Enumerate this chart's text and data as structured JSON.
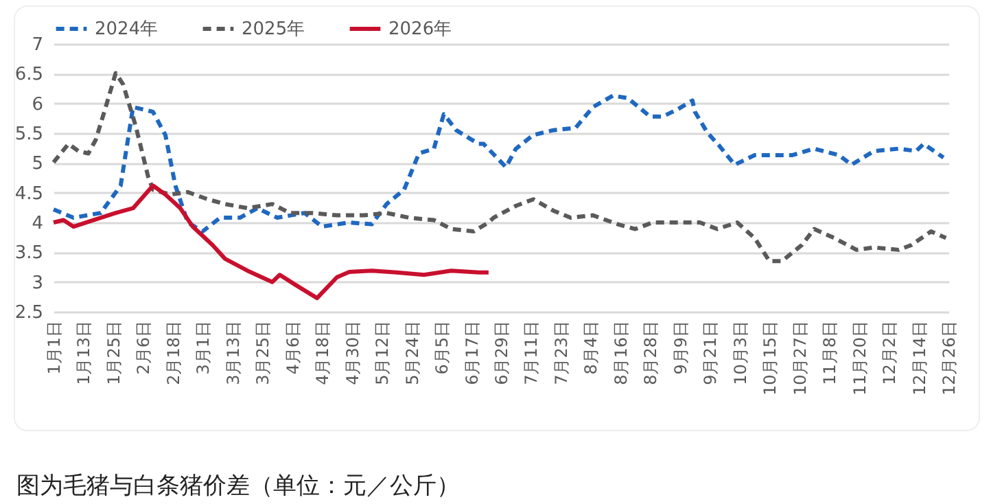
{
  "chart_data": {
    "type": "line",
    "annotations": [
      "图为毛猪与白条猪价差（单位：元／公斤）"
    ],
    "legend": "top",
    "grid": "y",
    "ylim": [
      2.5,
      7
    ],
    "yticks": [
      2.5,
      3,
      3.5,
      4,
      4.5,
      5,
      5.5,
      6,
      6.5,
      7
    ],
    "xlim": [
      "--01-01",
      "--12-26"
    ],
    "xticks": [
      {
        "value": "--01-01",
        "label": "1月1日"
      },
      {
        "value": "--01-13",
        "label": "1月13日"
      },
      {
        "value": "--01-25",
        "label": "1月25日"
      },
      {
        "value": "--02-06",
        "label": "2月6日"
      },
      {
        "value": "--02-18",
        "label": "2月18日"
      },
      {
        "value": "--03-01",
        "label": "3月1日"
      },
      {
        "value": "--03-13",
        "label": "3月13日"
      },
      {
        "value": "--03-25",
        "label": "3月25日"
      },
      {
        "value": "--04-06",
        "label": "4月6日"
      },
      {
        "value": "--04-18",
        "label": "4月18日"
      },
      {
        "value": "--04-30",
        "label": "4月30日"
      },
      {
        "value": "--05-12",
        "label": "5月12日"
      },
      {
        "value": "--05-24",
        "label": "5月24日"
      },
      {
        "value": "--06-05",
        "label": "6月5日"
      },
      {
        "value": "--06-17",
        "label": "6月17日"
      },
      {
        "value": "--06-29",
        "label": "6月29日"
      },
      {
        "value": "--07-11",
        "label": "7月11日"
      },
      {
        "value": "--07-23",
        "label": "7月23日"
      },
      {
        "value": "--08-04",
        "label": "8月4日"
      },
      {
        "value": "--08-16",
        "label": "8月16日"
      },
      {
        "value": "--08-28",
        "label": "8月28日"
      },
      {
        "value": "--09-09",
        "label": "9月9日"
      },
      {
        "value": "--09-21",
        "label": "9月21日"
      },
      {
        "value": "--10-03",
        "label": "10月3日"
      },
      {
        "value": "--10-15",
        "label": "10月15日"
      },
      {
        "value": "--10-27",
        "label": "10月27日"
      },
      {
        "value": "--11-08",
        "label": "11月8日"
      },
      {
        "value": "--11-20",
        "label": "11月20日"
      },
      {
        "value": "--12-02",
        "label": "12月2日"
      },
      {
        "value": "--12-14",
        "label": "12月14日"
      },
      {
        "value": "--12-26",
        "label": "12月26日"
      }
    ],
    "series": [
      {
        "name": "2024年",
        "color": "#1f68c0",
        "line_style": "dashed",
        "x": [
          "--01-01",
          "--01-09",
          "--01-20",
          "--01-28",
          "--02-02",
          "--02-10",
          "--02-15",
          "--02-19",
          "--02-24",
          "--03-01",
          "--03-08",
          "--03-16",
          "--03-23",
          "--03-31",
          "--04-11",
          "--04-18",
          "--04-29",
          "--05-08",
          "--05-14",
          "--05-21",
          "--05-27",
          "--06-02",
          "--06-06",
          "--06-11",
          "--06-20",
          "--06-22",
          "--07-01",
          "--07-05",
          "--07-12",
          "--07-20",
          "--07-29",
          "--08-05",
          "--08-13",
          "--08-19",
          "--08-28",
          "--09-02",
          "--09-08",
          "--09-14",
          "--09-15",
          "--09-20",
          "--09-25",
          "--10-01",
          "--10-09",
          "--10-15",
          "--10-24",
          "--11-02",
          "--11-12",
          "--11-17",
          "--11-26",
          "--12-06",
          "--12-13",
          "--12-16",
          "--12-24"
        ],
        "values": [
          4.22,
          4.08,
          4.16,
          4.62,
          5.94,
          5.86,
          5.47,
          4.62,
          4.0,
          3.85,
          4.08,
          4.08,
          4.24,
          4.08,
          4.16,
          3.93,
          4.0,
          3.97,
          4.31,
          4.55,
          5.16,
          5.24,
          5.82,
          5.55,
          5.32,
          5.32,
          4.93,
          5.24,
          5.47,
          5.55,
          5.59,
          5.94,
          6.13,
          6.09,
          5.78,
          5.78,
          5.9,
          6.05,
          5.86,
          5.51,
          5.28,
          4.97,
          5.13,
          5.13,
          5.13,
          5.24,
          5.13,
          4.97,
          5.2,
          5.24,
          5.2,
          5.32,
          5.09
        ]
      },
      {
        "name": "2025年",
        "color": "#5a5a5a",
        "line_style": "dashed",
        "x": [
          "--01-01",
          "--01-07",
          "--01-11",
          "--01-15",
          "--01-18",
          "--01-22",
          "--01-26",
          "--01-29",
          "--02-03",
          "--02-08",
          "--02-10",
          "--02-17",
          "--02-24",
          "--03-03",
          "--03-10",
          "--03-19",
          "--03-29",
          "--04-05",
          "--04-14",
          "--04-24",
          "--05-05",
          "--05-14",
          "--05-23",
          "--06-02",
          "--06-09",
          "--06-18",
          "--06-24",
          "--06-26",
          "--07-05",
          "--07-12",
          "--07-20",
          "--07-27",
          "--08-05",
          "--08-15",
          "--08-22",
          "--08-29",
          "--09-08",
          "--09-17",
          "--09-24",
          "--10-02",
          "--10-09",
          "--10-15",
          "--10-20",
          "--10-28",
          "--11-02",
          "--11-10",
          "--11-19",
          "--11-26",
          "--12-06",
          "--12-11",
          "--12-19",
          "--12-25"
        ],
        "values": [
          5.01,
          5.32,
          5.2,
          5.16,
          5.39,
          5.94,
          6.51,
          6.32,
          5.63,
          4.78,
          4.55,
          4.47,
          4.51,
          4.39,
          4.31,
          4.24,
          4.31,
          4.16,
          4.16,
          4.12,
          4.12,
          4.16,
          4.08,
          4.04,
          3.89,
          3.85,
          4.0,
          4.08,
          4.28,
          4.39,
          4.2,
          4.08,
          4.12,
          3.97,
          3.89,
          4.0,
          4.0,
          4.0,
          3.89,
          4.0,
          3.74,
          3.35,
          3.35,
          3.62,
          3.89,
          3.74,
          3.54,
          3.58,
          3.54,
          3.62,
          3.85,
          3.74
        ]
      },
      {
        "name": "2026年",
        "color": "#c8102e",
        "line_style": "solid",
        "x": [
          "--01-01",
          "--01-05",
          "--01-09",
          "--01-17",
          "--01-26",
          "--02-02",
          "--02-10",
          "--02-15",
          "--02-21",
          "--02-26",
          "--03-05",
          "--03-10",
          "--03-19",
          "--03-29",
          "--04-01",
          "--04-07",
          "--04-16",
          "--04-24",
          "--04-29",
          "--05-08",
          "--05-18",
          "--05-29",
          "--06-09",
          "--06-20",
          "--06-24"
        ],
        "values": [
          4.0,
          4.04,
          3.93,
          4.04,
          4.16,
          4.24,
          4.62,
          4.47,
          4.24,
          3.93,
          3.62,
          3.39,
          3.19,
          3.0,
          3.12,
          2.96,
          2.73,
          3.08,
          3.17,
          3.19,
          3.16,
          3.12,
          3.19,
          3.16,
          3.16
        ]
      }
    ]
  }
}
